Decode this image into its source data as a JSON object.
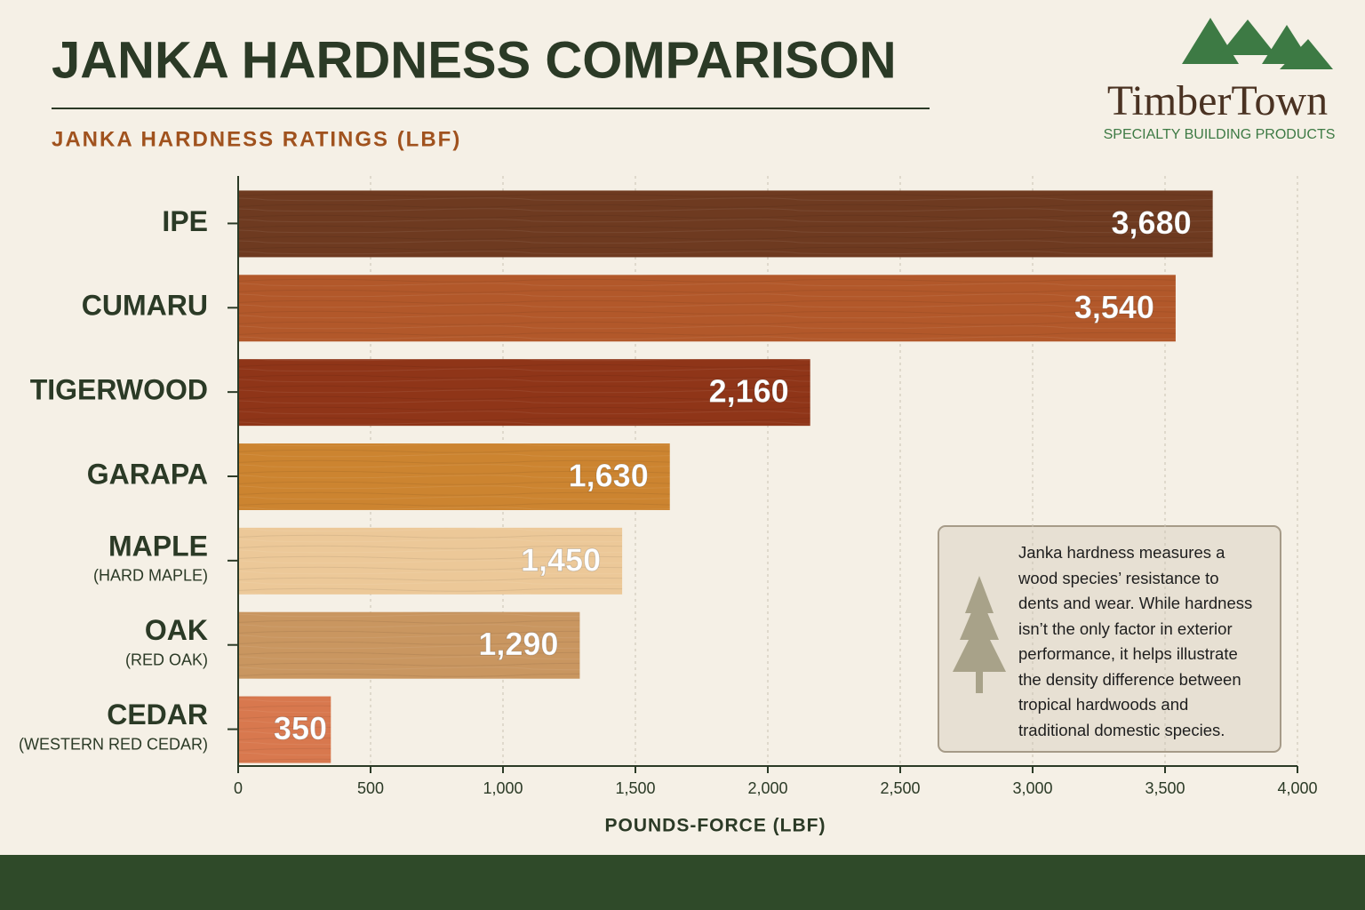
{
  "chart_data": {
    "type": "hbar",
    "title": "JANKA HARDNESS COMPARISON",
    "subtitle": "JANKA HARDNESS RATINGS (LBF)",
    "x_label": "POUNDS-FORCE (LBF)",
    "categories": [
      "IPE",
      "CUMARU",
      "TIGERWOOD",
      "GARAPA",
      "MAPLE",
      "OAK",
      "CEDAR"
    ],
    "category_notes": [
      null,
      null,
      null,
      null,
      "(HARD MAPLE)",
      "(RED OAK)",
      "(WESTERN RED CEDAR)"
    ],
    "values": [
      3680,
      3540,
      2160,
      1630,
      1450,
      1290,
      350
    ],
    "value_labels": [
      "3,680",
      "3,540",
      "2,160",
      "1,630",
      "1,450",
      "1,290",
      "350"
    ],
    "colors": [
      "#6e3a20",
      "#b2582a",
      "#8f3518",
      "#cc8430",
      "#ecc898",
      "#c99660",
      "#d8784e"
    ],
    "xlim": [
      0,
      4000
    ],
    "xticks": [
      0,
      500,
      {
        "value": 1000,
        "label": "1,000"
      },
      {
        "value": 1500,
        "label": "1,500"
      },
      {
        "value": 2000,
        "label": "2,000"
      },
      {
        "value": 2500,
        "label": "2,500"
      },
      {
        "value": 3000,
        "label": "3,000"
      },
      {
        "value": 3500,
        "label": "3,500"
      },
      {
        "value": 4000,
        "label": "4,000"
      }
    ],
    "grid": true,
    "annotation": "Janka hardness measures a wood species’ resistance to dents and wear. While hardness isn’t the only factor in exterior performance, it helps illustrate the density difference between tropical hardwoods and traditional domestic species."
  },
  "logo": {
    "name": "TimberTown",
    "tagline": "SPECIALTY BUILDING PRODUCTS"
  }
}
